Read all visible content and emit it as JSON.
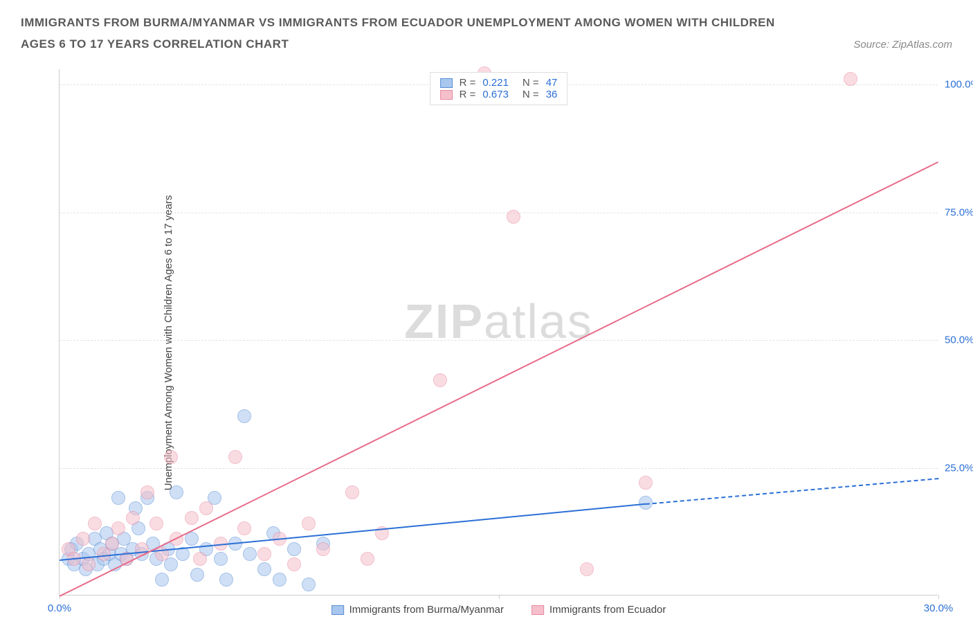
{
  "header": {
    "title": "IMMIGRANTS FROM BURMA/MYANMAR VS IMMIGRANTS FROM ECUADOR UNEMPLOYMENT AMONG WOMEN WITH CHILDREN AGES 6 TO 17 YEARS CORRELATION CHART",
    "source_prefix": "Source: ",
    "source_name": "ZipAtlas.com"
  },
  "chart": {
    "type": "scatter",
    "ylabel": "Unemployment Among Women with Children Ages 6 to 17 years",
    "watermark": {
      "bold": "ZIP",
      "rest": "atlas"
    },
    "xlim": [
      0,
      30
    ],
    "ylim": [
      0,
      103
    ],
    "xtick_positions": [
      0,
      15,
      30
    ],
    "xtick_labels": [
      "0.0%",
      "",
      "30.0%"
    ],
    "ytick_positions": [
      25,
      50,
      75,
      100
    ],
    "ytick_labels": [
      "25.0%",
      "50.0%",
      "75.0%",
      "100.0%"
    ],
    "axis_label_color": "#2b6fd6",
    "grid_color": "#e2e2e2",
    "background_color": "#ffffff",
    "point_radius": 10,
    "point_opacity": 0.55,
    "series": [
      {
        "name": "Immigrants from Burma/Myanmar",
        "color_fill": "#a9c6ee",
        "color_stroke": "#5b8fd6",
        "R": "0.221",
        "N": "47",
        "trend": {
          "x1": 0,
          "y1": 7,
          "x2": 20,
          "y2": 18,
          "dashed_after_x": 20,
          "x2_dash": 30,
          "y2_dash": 23,
          "color": "#2b6fd6"
        },
        "points": [
          [
            0.3,
            7
          ],
          [
            0.4,
            9
          ],
          [
            0.5,
            6
          ],
          [
            0.6,
            10
          ],
          [
            0.8,
            7
          ],
          [
            0.9,
            5
          ],
          [
            1.0,
            8
          ],
          [
            1.2,
            11
          ],
          [
            1.3,
            6
          ],
          [
            1.4,
            9
          ],
          [
            1.5,
            7
          ],
          [
            1.6,
            12
          ],
          [
            1.7,
            8
          ],
          [
            1.8,
            10
          ],
          [
            1.9,
            6
          ],
          [
            2.0,
            19
          ],
          [
            2.1,
            8
          ],
          [
            2.2,
            11
          ],
          [
            2.3,
            7
          ],
          [
            2.5,
            9
          ],
          [
            2.6,
            17
          ],
          [
            2.7,
            13
          ],
          [
            2.8,
            8
          ],
          [
            3.0,
            19
          ],
          [
            3.2,
            10
          ],
          [
            3.3,
            7
          ],
          [
            3.5,
            3
          ],
          [
            3.7,
            9
          ],
          [
            3.8,
            6
          ],
          [
            4.0,
            20
          ],
          [
            4.2,
            8
          ],
          [
            4.5,
            11
          ],
          [
            4.7,
            4
          ],
          [
            5.0,
            9
          ],
          [
            5.3,
            19
          ],
          [
            5.5,
            7
          ],
          [
            5.7,
            3
          ],
          [
            6.0,
            10
          ],
          [
            6.3,
            35
          ],
          [
            6.5,
            8
          ],
          [
            7.0,
            5
          ],
          [
            7.3,
            12
          ],
          [
            7.5,
            3
          ],
          [
            8.0,
            9
          ],
          [
            8.5,
            2
          ],
          [
            9.0,
            10
          ],
          [
            20.0,
            18
          ]
        ]
      },
      {
        "name": "Immigrants from Ecuador",
        "color_fill": "#f5c0cb",
        "color_stroke": "#e98aa3",
        "R": "0.673",
        "N": "36",
        "trend": {
          "x1": 0,
          "y1": 0,
          "x2": 30,
          "y2": 85,
          "color": "#e86b8a"
        },
        "points": [
          [
            0.3,
            9
          ],
          [
            0.5,
            7
          ],
          [
            0.8,
            11
          ],
          [
            1.0,
            6
          ],
          [
            1.2,
            14
          ],
          [
            1.5,
            8
          ],
          [
            1.8,
            10
          ],
          [
            2.0,
            13
          ],
          [
            2.3,
            7
          ],
          [
            2.5,
            15
          ],
          [
            2.8,
            9
          ],
          [
            3.0,
            20
          ],
          [
            3.3,
            14
          ],
          [
            3.5,
            8
          ],
          [
            3.8,
            27
          ],
          [
            4.0,
            11
          ],
          [
            4.5,
            15
          ],
          [
            4.8,
            7
          ],
          [
            5.0,
            17
          ],
          [
            5.5,
            10
          ],
          [
            6.0,
            27
          ],
          [
            6.3,
            13
          ],
          [
            7.0,
            8
          ],
          [
            7.5,
            11
          ],
          [
            8.0,
            6
          ],
          [
            8.5,
            14
          ],
          [
            9.0,
            9
          ],
          [
            10.0,
            20
          ],
          [
            10.5,
            7
          ],
          [
            11.0,
            12
          ],
          [
            13.0,
            42
          ],
          [
            15.5,
            74
          ],
          [
            18.0,
            5
          ],
          [
            20.0,
            22
          ],
          [
            27.0,
            101
          ],
          [
            14.5,
            102
          ]
        ]
      }
    ],
    "legend_top": {
      "label_color": "#555555",
      "value_color": "#2b6fd6"
    },
    "legend_bottom_color": "#444444"
  }
}
